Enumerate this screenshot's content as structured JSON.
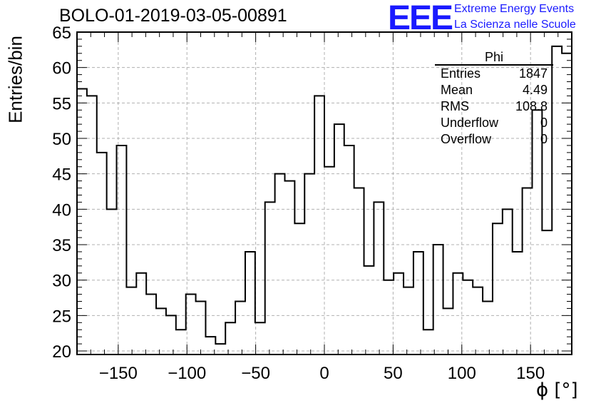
{
  "header": {
    "title": "BOLO-01-2019-03-05-00891",
    "logo_text": "EEE",
    "logo_line1": "Extreme Energy Events",
    "logo_line2": "La Scienza nelle Scuole"
  },
  "stats_box": {
    "title": "Phi",
    "rows": [
      {
        "key": "Entries",
        "value": "1847"
      },
      {
        "key": "Mean",
        "value": "4.49"
      },
      {
        "key": "RMS",
        "value": "108.8"
      },
      {
        "key": "Underflow",
        "value": "0"
      },
      {
        "key": "Overflow",
        "value": "0"
      }
    ]
  },
  "chart_data": {
    "type": "bar",
    "style": "step-histogram",
    "title": "BOLO-01-2019-03-05-00891",
    "xlabel": "ϕ [°]",
    "ylabel": "Entries/bin",
    "xlim": [
      -180,
      180
    ],
    "ylim": [
      19.5,
      65
    ],
    "bin_width": 7.2,
    "x_ticks": [
      -150,
      -100,
      -50,
      0,
      50,
      100,
      150
    ],
    "x_tick_labels": [
      "−150",
      "−100",
      "−50",
      "0",
      "50",
      "100",
      "150"
    ],
    "y_ticks": [
      20,
      25,
      30,
      35,
      40,
      45,
      50,
      55,
      60,
      65
    ],
    "y_tick_labels": [
      "20",
      "25",
      "30",
      "35",
      "40",
      "45",
      "50",
      "55",
      "60",
      "65"
    ],
    "grid": true,
    "line_color": "#000000",
    "values": [
      57,
      56,
      48,
      40,
      49,
      29,
      31,
      28,
      26,
      25,
      23,
      28,
      27,
      22,
      21,
      24,
      27,
      34,
      24,
      41,
      45,
      44,
      38,
      45,
      56,
      46,
      52,
      49,
      43,
      32,
      41,
      30,
      31,
      29,
      34,
      23,
      35,
      26,
      31,
      30,
      29,
      27,
      38,
      40,
      34,
      43,
      54,
      37,
      63,
      62
    ]
  }
}
